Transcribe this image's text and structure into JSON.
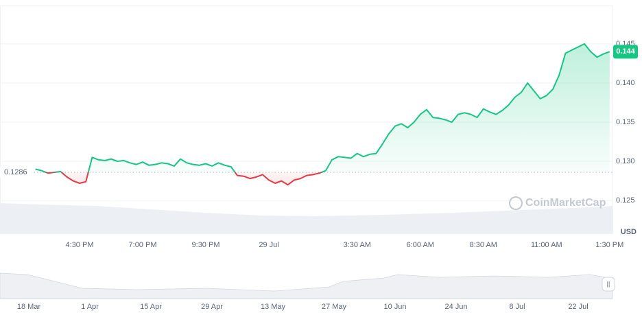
{
  "chart_data": {
    "type": "line",
    "x": [
      null,
      null,
      null,
      null,
      null,
      null,
      null,
      "4:30 PM",
      null,
      null,
      null,
      null,
      null,
      null,
      null,
      null,
      null,
      "7:00 PM",
      null,
      null,
      null,
      null,
      null,
      null,
      null,
      null,
      null,
      "9:30 PM",
      null,
      null,
      null,
      null,
      null,
      null,
      null,
      null,
      null,
      "29 Jul",
      null,
      null,
      null,
      null,
      null,
      null,
      null,
      null,
      null,
      null,
      null,
      null,
      null,
      "3:30 AM",
      null,
      null,
      null,
      null,
      null,
      null,
      null,
      null,
      null,
      "6:00 AM",
      null,
      null,
      null,
      null,
      null,
      null,
      null,
      null,
      null,
      "8:30 AM",
      null,
      null,
      null,
      null,
      null,
      null,
      null,
      null,
      null,
      "11:00 AM",
      null,
      null,
      null,
      null,
      null,
      null,
      null,
      null,
      null,
      "1:30 PM"
    ],
    "values": [
      0.129,
      0.1288,
      0.1285,
      0.1286,
      0.1287,
      0.128,
      0.1275,
      0.1272,
      0.1274,
      0.1305,
      0.1302,
      0.1301,
      0.1303,
      0.13,
      0.1301,
      0.1298,
      0.1296,
      0.1299,
      0.1295,
      0.1296,
      0.1298,
      0.1297,
      0.1294,
      0.1303,
      0.1298,
      0.1296,
      0.1295,
      0.1297,
      0.1294,
      0.1298,
      0.1295,
      0.1293,
      0.1282,
      0.1281,
      0.1278,
      0.128,
      0.1283,
      0.1276,
      0.1272,
      0.1275,
      0.127,
      0.1276,
      0.1278,
      0.1282,
      0.1283,
      0.1285,
      0.1288,
      0.1302,
      0.1306,
      0.1305,
      0.1304,
      0.131,
      0.1306,
      0.1309,
      0.131,
      0.1322,
      0.1335,
      0.1345,
      0.1348,
      0.1343,
      0.135,
      0.136,
      0.1366,
      0.1356,
      0.1355,
      0.1353,
      0.135,
      0.136,
      0.1362,
      0.136,
      0.1356,
      0.1367,
      0.1363,
      0.136,
      0.1365,
      0.1372,
      0.1382,
      0.1388,
      0.14,
      0.139,
      0.138,
      0.1384,
      0.1392,
      0.141,
      0.1438,
      0.1442,
      0.1446,
      0.145,
      0.144,
      0.1433,
      0.1437,
      0.144
    ],
    "up_color": "#16c784",
    "down_color": "#ea3943",
    "baseline": 0.1286,
    "current_price": 0.144,
    "ylim": [
      0.1208,
      0.1499
    ],
    "yticks": [
      0.125,
      {
        "value": 0.13,
        "label": "0.130"
      },
      0.135,
      {
        "value": 0.14,
        "label": "0.140"
      },
      0.145
    ],
    "y_unit": "USD",
    "grid": true,
    "watermark": "CoinMarketCap"
  },
  "navigator": {
    "labels": [
      "18 Mar",
      "1 Apr",
      "15 Apr",
      "29 Apr",
      "13 May",
      "27 May",
      "10 Jun",
      "24 Jun",
      "8 Jul",
      "22 Jul"
    ]
  }
}
